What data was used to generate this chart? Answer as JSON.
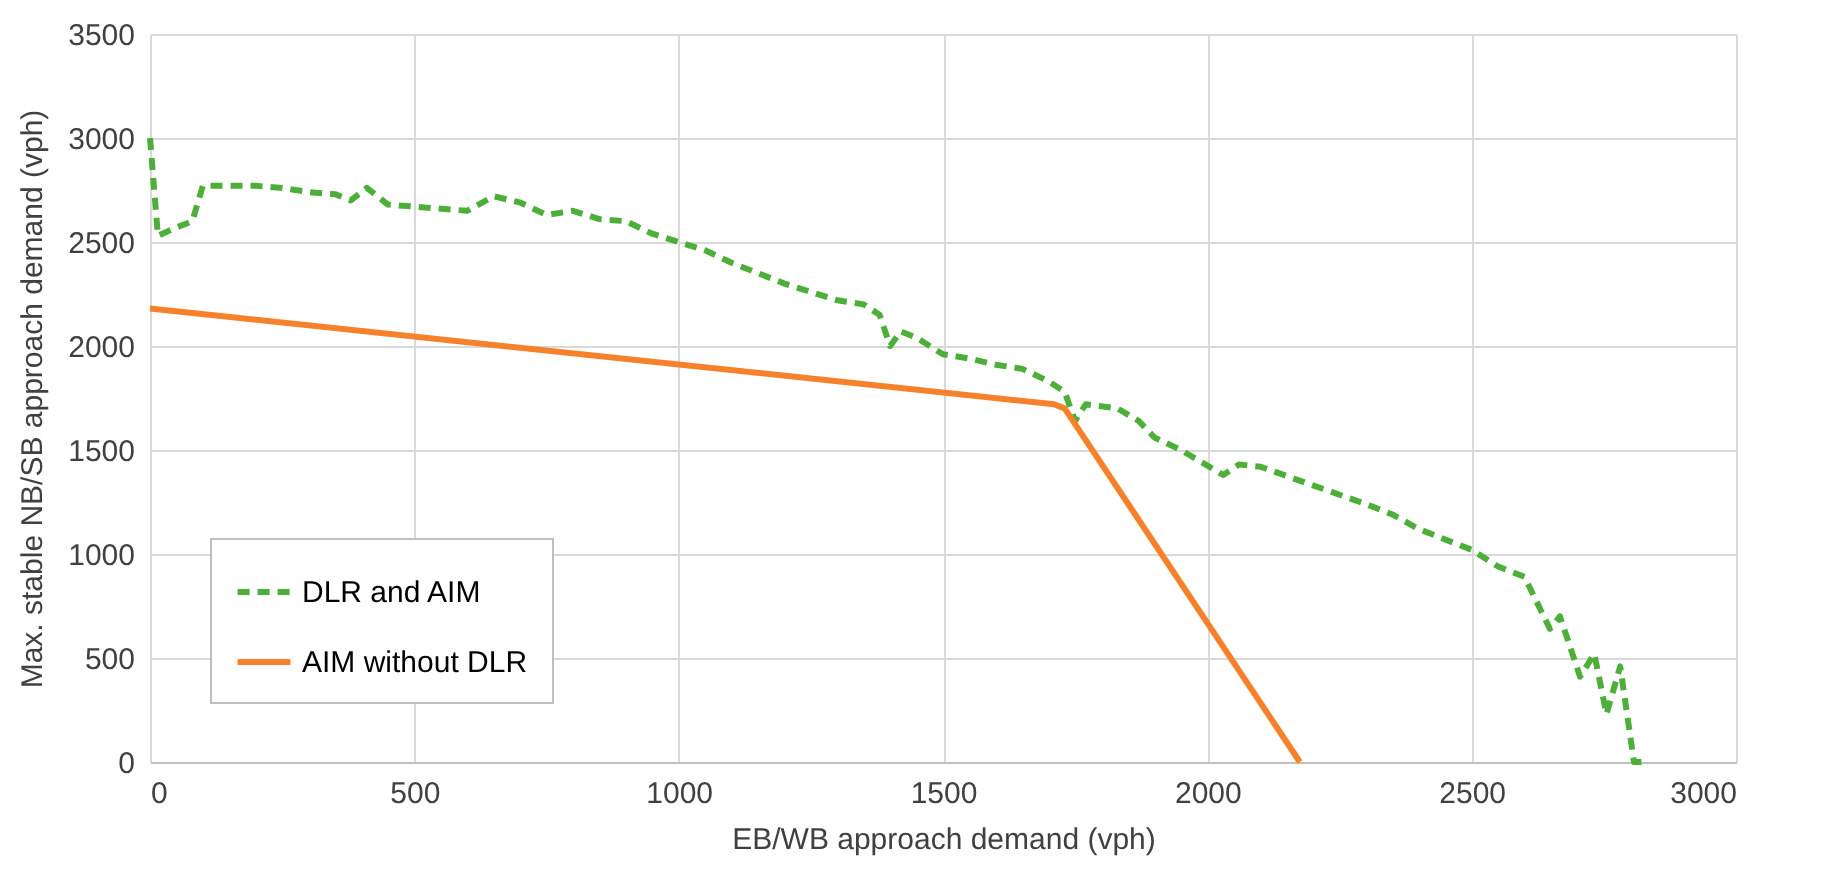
{
  "chart_data": {
    "type": "line",
    "xlabel": "EB/WB approach demand (vph)",
    "ylabel": "Max. stable NB/SB approach demand (vph)",
    "xlim": [
      0,
      3000
    ],
    "xticks": [
      0,
      500,
      1000,
      1500,
      2000,
      2500,
      3000
    ],
    "ylim": [
      0,
      3500
    ],
    "yticks": [
      0,
      500,
      1000,
      1500,
      2000,
      2500,
      3000,
      3500
    ],
    "grid": true,
    "legend": "bottom left",
    "marker": "none",
    "series": [
      {
        "name": "DLR and AIM",
        "color": "#4daf3a",
        "line_style": "dashed",
        "x": [
          0,
          15,
          50,
          80,
          100,
          200,
          250,
          300,
          350,
          380,
          410,
          450,
          500,
          600,
          650,
          700,
          750,
          800,
          850,
          900,
          950,
          1000,
          1050,
          1100,
          1200,
          1300,
          1350,
          1380,
          1400,
          1420,
          1450,
          1500,
          1550,
          1600,
          1650,
          1700,
          1730,
          1750,
          1770,
          1830,
          1870,
          1900,
          1950,
          2030,
          2060,
          2100,
          2200,
          2300,
          2350,
          2400,
          2500,
          2550,
          2600,
          2648,
          2667,
          2705,
          2732,
          2755,
          2781,
          2807,
          2825
        ],
        "values": [
          3000,
          2530,
          2570,
          2600,
          2770,
          2770,
          2760,
          2740,
          2730,
          2700,
          2760,
          2680,
          2670,
          2650,
          2720,
          2690,
          2630,
          2650,
          2610,
          2600,
          2540,
          2500,
          2460,
          2400,
          2300,
          2220,
          2200,
          2150,
          2000,
          2070,
          2040,
          1960,
          1940,
          1910,
          1890,
          1830,
          1780,
          1640,
          1720,
          1700,
          1640,
          1560,
          1500,
          1380,
          1430,
          1420,
          1330,
          1240,
          1190,
          1120,
          1020,
          940,
          890,
          640,
          700,
          410,
          520,
          230,
          460,
          0,
          0
        ]
      },
      {
        "name": "AIM without DLR",
        "color": "#f5822a",
        "line_style": "solid",
        "x": [
          0,
          1710,
          1730,
          2175
        ],
        "values": [
          2180,
          1720,
          1700,
          0
        ]
      }
    ]
  }
}
